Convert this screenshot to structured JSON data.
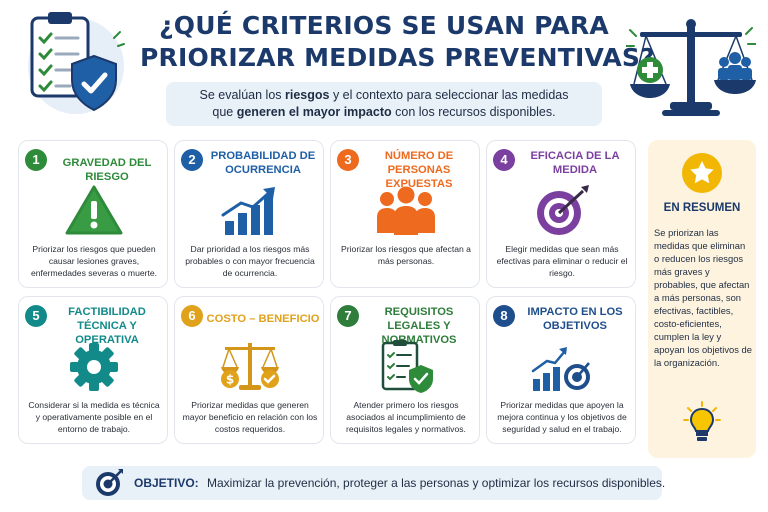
{
  "title": {
    "line1": "¿QUÉ CRITERIOS SE USAN PARA",
    "line2": "PRIORIZAR MEDIDAS PREVENTIVAS?"
  },
  "subtitle": {
    "part1": "Se evalúan los ",
    "bold1": "riesgos",
    "part2": " y el contexto para seleccionar las medidas",
    "part3": "que ",
    "bold2": "generen el mayor impacto",
    "part4": " con los recursos disponibles."
  },
  "criteria": [
    {
      "num": "1",
      "title": "GRAVEDAD DEL RIESGO",
      "color": "#2e8b3a",
      "icon": "warning-icon",
      "desc": "Priorizar los riesgos que pueden causar lesiones graves, enfermedades severas o muerte."
    },
    {
      "num": "2",
      "title": "PROBABILIDAD DE OCURRENCIA",
      "color": "#1f5fa6",
      "icon": "growth-chart-icon",
      "desc": "Dar prioridad a los riesgos más probables o con mayor frecuencia de ocurrencia."
    },
    {
      "num": "3",
      "title": "NÚMERO DE PERSONAS EXPUESTAS",
      "color": "#ee6a1f",
      "icon": "people-group-icon",
      "desc": "Priorizar los riesgos que afectan a más personas."
    },
    {
      "num": "4",
      "title": "EFICACIA DE LA MEDIDA",
      "color": "#7b3fa0",
      "icon": "target-icon",
      "desc": "Elegir medidas que sean más efectivas para eliminar o reducir el riesgo."
    },
    {
      "num": "5",
      "title": "FACTIBILIDAD TÉCNICA Y OPERATIVA",
      "color": "#138a8a",
      "icon": "gear-icon",
      "desc": "Considerar si la medida es técnica y operativamente posible en el entorno de trabajo."
    },
    {
      "num": "6",
      "title": "COSTO – BENEFICIO",
      "color": "#e1a21b",
      "icon": "balance-scale-icon",
      "desc": "Priorizar medidas que generen mayor beneficio en relación con los costos requeridos."
    },
    {
      "num": "7",
      "title": "REQUISITOS LEGALES Y NORMATIVOS",
      "color": "#2e7d3a",
      "icon": "checklist-shield-icon",
      "desc": "Atender primero los riesgos asociados al incumplimiento de requisitos legales y normativos."
    },
    {
      "num": "8",
      "title": "IMPACTO EN LOS OBJETIVOS",
      "color": "#1f4e8c",
      "icon": "chart-target-icon",
      "desc": "Priorizar medidas que apoyen la mejora continua y los objetivos de seguridad y salud en el trabajo."
    }
  ],
  "summary": {
    "title": "EN RESUMEN",
    "text": "Se priorizan las medidas que eliminan o reducen los riesgos más graves y probables, que afectan a más personas, son efectivas, factibles, costo-eficientes, cumplen la ley y apoyan los objetivos de la organización."
  },
  "objective": {
    "label": "OBJETIVO:",
    "text": "Maximizar la prevención, proteger a las personas y optimizar los recursos disponibles."
  },
  "colors": {
    "navy": "#1b3a6b",
    "light_panel": "#e8f0f8",
    "summary_bg": "#fdf3de"
  }
}
